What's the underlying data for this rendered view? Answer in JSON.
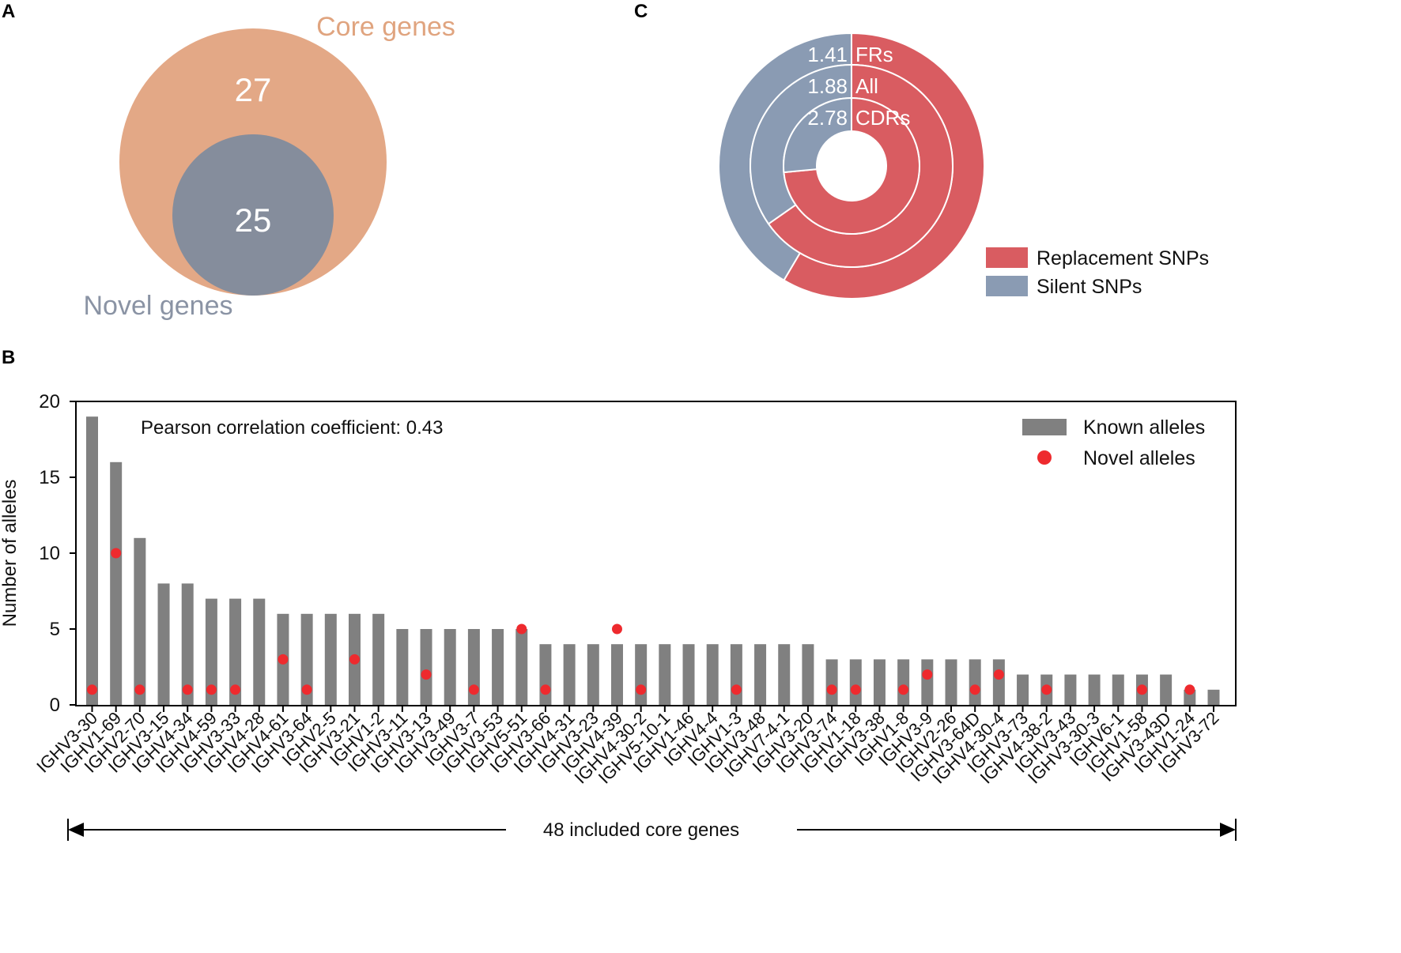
{
  "panels": {
    "a": "A",
    "b": "B",
    "c": "C"
  },
  "venn": {
    "outer_label": "Core genes",
    "outer_value": "27",
    "inner_label": "Novel genes",
    "inner_value": "25",
    "outer_color": "#e3a886",
    "inner_color": "#858d9c",
    "inner_label_color": "#8a93a4",
    "outer_label_color": "#e0a47f"
  },
  "donut": {
    "rings": [
      {
        "name": "FRs",
        "ratio_label": "1.41",
        "replacement_fraction": 0.585
      },
      {
        "name": "All",
        "ratio_label": "1.88",
        "replacement_fraction": 0.653
      },
      {
        "name": "CDRs",
        "ratio_label": "2.78",
        "replacement_fraction": 0.735
      }
    ],
    "legend": [
      {
        "label": "Replacement SNPs",
        "color": "#d95c61"
      },
      {
        "label": "Silent SNPs",
        "color": "#8a9bb3"
      }
    ]
  },
  "chart_data": {
    "type": "bar",
    "title": "",
    "annotation": "Pearson correlation coefficient: 0.43",
    "xlabel": "",
    "ylabel": "Number of alleles",
    "ylim": [
      0,
      20
    ],
    "yticks": [
      0,
      5,
      10,
      15,
      20
    ],
    "categories": [
      "IGHV3-30",
      "IGHV1-69",
      "IGHV2-70",
      "IGHV3-15",
      "IGHV4-34",
      "IGHV4-59",
      "IGHV3-33",
      "IGHV4-28",
      "IGHV4-61",
      "IGHV3-64",
      "IGHV2-5",
      "IGHV3-21",
      "IGHV1-2",
      "IGHV3-11",
      "IGHV3-13",
      "IGHV3-49",
      "IGHV3-7",
      "IGHV3-53",
      "IGHV5-51",
      "IGHV3-66",
      "IGHV4-31",
      "IGHV3-23",
      "IGHV4-39",
      "IGHV4-30-2",
      "IGHV5-10-1",
      "IGHV1-46",
      "IGHV4-4",
      "IGHV1-3",
      "IGHV3-48",
      "IGHV7-4-1",
      "IGHV3-20",
      "IGHV3-74",
      "IGHV1-18",
      "IGHV3-38",
      "IGHV1-8",
      "IGHV3-9",
      "IGHV2-26",
      "IGHV3-64D",
      "IGHV4-30-4",
      "IGHV3-73",
      "IGHV4-38-2",
      "IGHV3-43",
      "IGHV3-30-3",
      "IGHV6-1",
      "IGHV1-58",
      "IGHV3-43D",
      "IGHV1-24",
      "IGHV3-72"
    ],
    "series": [
      {
        "name": "Known alleles",
        "color": "#808080",
        "values": [
          19,
          16,
          11,
          8,
          8,
          7,
          7,
          7,
          6,
          6,
          6,
          6,
          6,
          5,
          5,
          5,
          5,
          5,
          5,
          4,
          4,
          4,
          4,
          4,
          4,
          4,
          4,
          4,
          4,
          4,
          4,
          3,
          3,
          3,
          3,
          3,
          3,
          3,
          3,
          2,
          2,
          2,
          2,
          2,
          2,
          2,
          1,
          1
        ]
      },
      {
        "name": "Novel alleles",
        "color": "#ee2a2e",
        "values": [
          1,
          10,
          1,
          null,
          1,
          1,
          1,
          null,
          3,
          1,
          null,
          3,
          null,
          null,
          2,
          null,
          1,
          null,
          5,
          1,
          null,
          null,
          5,
          1,
          null,
          null,
          null,
          1,
          null,
          null,
          null,
          1,
          1,
          null,
          1,
          2,
          null,
          1,
          2,
          null,
          1,
          null,
          null,
          null,
          1,
          null,
          1,
          null
        ]
      }
    ],
    "legend_position": "top-right",
    "bracket_label": "48 included core genes"
  }
}
